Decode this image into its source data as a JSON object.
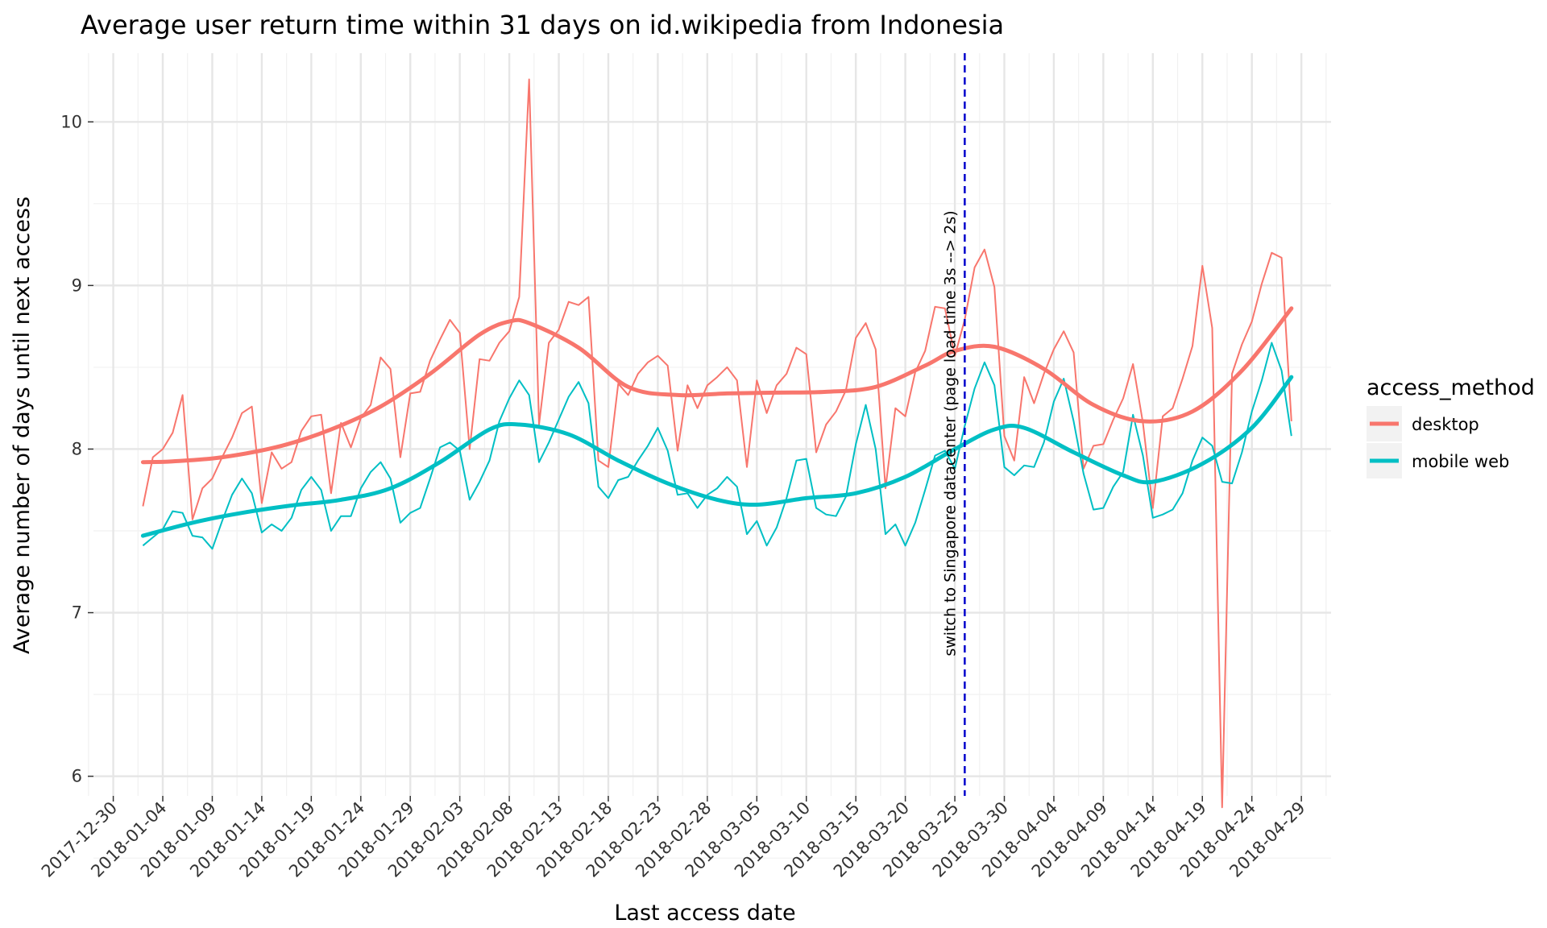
{
  "chart_data": {
    "type": "line",
    "title": "Average user return time within 31 days on id.wikipedia from Indonesia",
    "xlabel": "Last access date",
    "ylabel": "Average number of days until next access",
    "ylim": [
      5.88,
      10.42
    ],
    "xlim": [
      "2017-12-28",
      "2018-05-02"
    ],
    "y_ticks": [
      6,
      7,
      8,
      9,
      10
    ],
    "x_ticks": [
      "2017-12-30",
      "2018-01-04",
      "2018-01-09",
      "2018-01-14",
      "2018-01-19",
      "2018-01-24",
      "2018-01-29",
      "2018-02-03",
      "2018-02-08",
      "2018-02-13",
      "2018-02-18",
      "2018-02-23",
      "2018-02-28",
      "2018-03-05",
      "2018-03-10",
      "2018-03-15",
      "2018-03-20",
      "2018-03-25",
      "2018-03-30",
      "2018-04-04",
      "2018-04-09",
      "2018-04-14",
      "2018-04-19",
      "2018-04-24",
      "2018-04-29"
    ],
    "grid": true,
    "legend": {
      "title": "access_method",
      "position": "right"
    },
    "start_date": "2018-01-02",
    "series": [
      {
        "name": "desktop",
        "color": "#F8766D",
        "values": [
          7.65,
          7.95,
          8.0,
          8.1,
          8.33,
          7.57,
          7.76,
          7.82,
          7.95,
          8.07,
          8.22,
          8.26,
          7.67,
          7.98,
          7.88,
          7.92,
          8.11,
          8.2,
          8.21,
          7.73,
          8.16,
          8.01,
          8.19,
          8.27,
          8.56,
          8.49,
          7.95,
          8.34,
          8.35,
          8.54,
          8.67,
          8.79,
          8.71,
          8.0,
          8.55,
          8.54,
          8.65,
          8.72,
          8.93,
          10.26,
          8.15,
          8.65,
          8.73,
          8.9,
          8.88,
          8.93,
          7.93,
          7.89,
          8.4,
          8.33,
          8.46,
          8.53,
          8.57,
          8.51,
          7.99,
          8.39,
          8.25,
          8.39,
          8.44,
          8.5,
          8.42,
          7.89,
          8.42,
          8.22,
          8.39,
          8.46,
          8.62,
          8.58,
          7.98,
          8.15,
          8.23,
          8.36,
          8.68,
          8.77,
          8.61,
          7.76,
          8.25,
          8.2,
          8.47,
          8.6,
          8.87,
          8.86,
          8.57,
          8.79,
          9.11,
          9.22,
          8.99,
          8.08,
          7.93,
          8.44,
          8.28,
          8.46,
          8.61,
          8.72,
          8.59,
          7.88,
          8.02,
          8.03,
          8.18,
          8.31,
          8.52,
          8.16,
          7.64,
          8.2,
          8.25,
          8.43,
          8.63,
          9.12,
          8.74,
          5.81,
          8.46,
          8.64,
          8.78,
          9.01,
          9.2,
          9.17,
          8.17
        ]
      },
      {
        "name": "mobile web",
        "color": "#00BFC4",
        "values": [
          7.41,
          7.46,
          7.51,
          7.62,
          7.61,
          7.47,
          7.46,
          7.39,
          7.56,
          7.72,
          7.82,
          7.73,
          7.49,
          7.54,
          7.5,
          7.58,
          7.75,
          7.83,
          7.75,
          7.5,
          7.59,
          7.59,
          7.76,
          7.86,
          7.92,
          7.82,
          7.55,
          7.61,
          7.64,
          7.82,
          8.01,
          8.04,
          7.99,
          7.69,
          7.8,
          7.93,
          8.17,
          8.31,
          8.42,
          8.33,
          7.92,
          8.04,
          8.18,
          8.32,
          8.41,
          8.28,
          7.77,
          7.7,
          7.81,
          7.83,
          7.93,
          8.02,
          8.13,
          7.99,
          7.72,
          7.73,
          7.64,
          7.72,
          7.76,
          7.83,
          7.77,
          7.48,
          7.56,
          7.41,
          7.52,
          7.7,
          7.93,
          7.94,
          7.64,
          7.6,
          7.59,
          7.71,
          8.03,
          8.27,
          8.0,
          7.48,
          7.54,
          7.41,
          7.55,
          7.75,
          7.96,
          7.99,
          7.88,
          8.14,
          8.37,
          8.53,
          8.39,
          7.89,
          7.84,
          7.9,
          7.89,
          8.04,
          8.29,
          8.43,
          8.17,
          7.85,
          7.63,
          7.64,
          7.77,
          7.86,
          8.21,
          7.96,
          7.58,
          7.6,
          7.63,
          7.73,
          7.93,
          8.07,
          8.02,
          7.8,
          7.79,
          7.98,
          8.23,
          8.42,
          8.65,
          8.48,
          8.08
        ]
      }
    ],
    "smooth_series": [
      {
        "name": "desktop",
        "color": "#F8766D",
        "x": [
          "2018-01-02",
          "2018-01-05",
          "2018-01-10",
          "2018-01-16",
          "2018-01-21",
          "2018-01-26",
          "2018-01-31",
          "2018-02-05",
          "2018-02-08",
          "2018-02-10",
          "2018-02-15",
          "2018-02-20",
          "2018-02-25",
          "2018-03-02",
          "2018-03-07",
          "2018-03-12",
          "2018-03-17",
          "2018-03-22",
          "2018-03-25",
          "2018-03-29",
          "2018-04-03",
          "2018-04-08",
          "2018-04-13",
          "2018-04-18",
          "2018-04-23",
          "2018-04-28"
        ],
        "values": [
          7.92,
          7.925,
          7.95,
          8.02,
          8.12,
          8.26,
          8.46,
          8.7,
          8.78,
          8.77,
          8.62,
          8.38,
          8.33,
          8.34,
          8.345,
          8.35,
          8.38,
          8.51,
          8.6,
          8.625,
          8.49,
          8.27,
          8.17,
          8.23,
          8.48,
          8.86
        ]
      },
      {
        "name": "mobile web",
        "color": "#00BFC4",
        "x": [
          "2018-01-02",
          "2018-01-07",
          "2018-01-12",
          "2018-01-17",
          "2018-01-22",
          "2018-01-27",
          "2018-02-01",
          "2018-02-06",
          "2018-02-09",
          "2018-02-14",
          "2018-02-19",
          "2018-02-24",
          "2018-03-01",
          "2018-03-05",
          "2018-03-10",
          "2018-03-15",
          "2018-03-20",
          "2018-03-25",
          "2018-03-29",
          "2018-04-01",
          "2018-04-06",
          "2018-04-11",
          "2018-04-14",
          "2018-04-19",
          "2018-04-24",
          "2018-04-28"
        ],
        "values": [
          7.47,
          7.55,
          7.61,
          7.655,
          7.69,
          7.76,
          7.92,
          8.12,
          8.15,
          8.09,
          7.93,
          7.79,
          7.69,
          7.66,
          7.7,
          7.73,
          7.83,
          8.0,
          8.12,
          8.13,
          7.98,
          7.84,
          7.8,
          7.91,
          8.13,
          8.44
        ]
      }
    ],
    "annotation": {
      "text": "switch to Singapore datacenter (page load time 3s --> 2s)",
      "date": "2018-03-26",
      "color": "#0000CC"
    }
  }
}
